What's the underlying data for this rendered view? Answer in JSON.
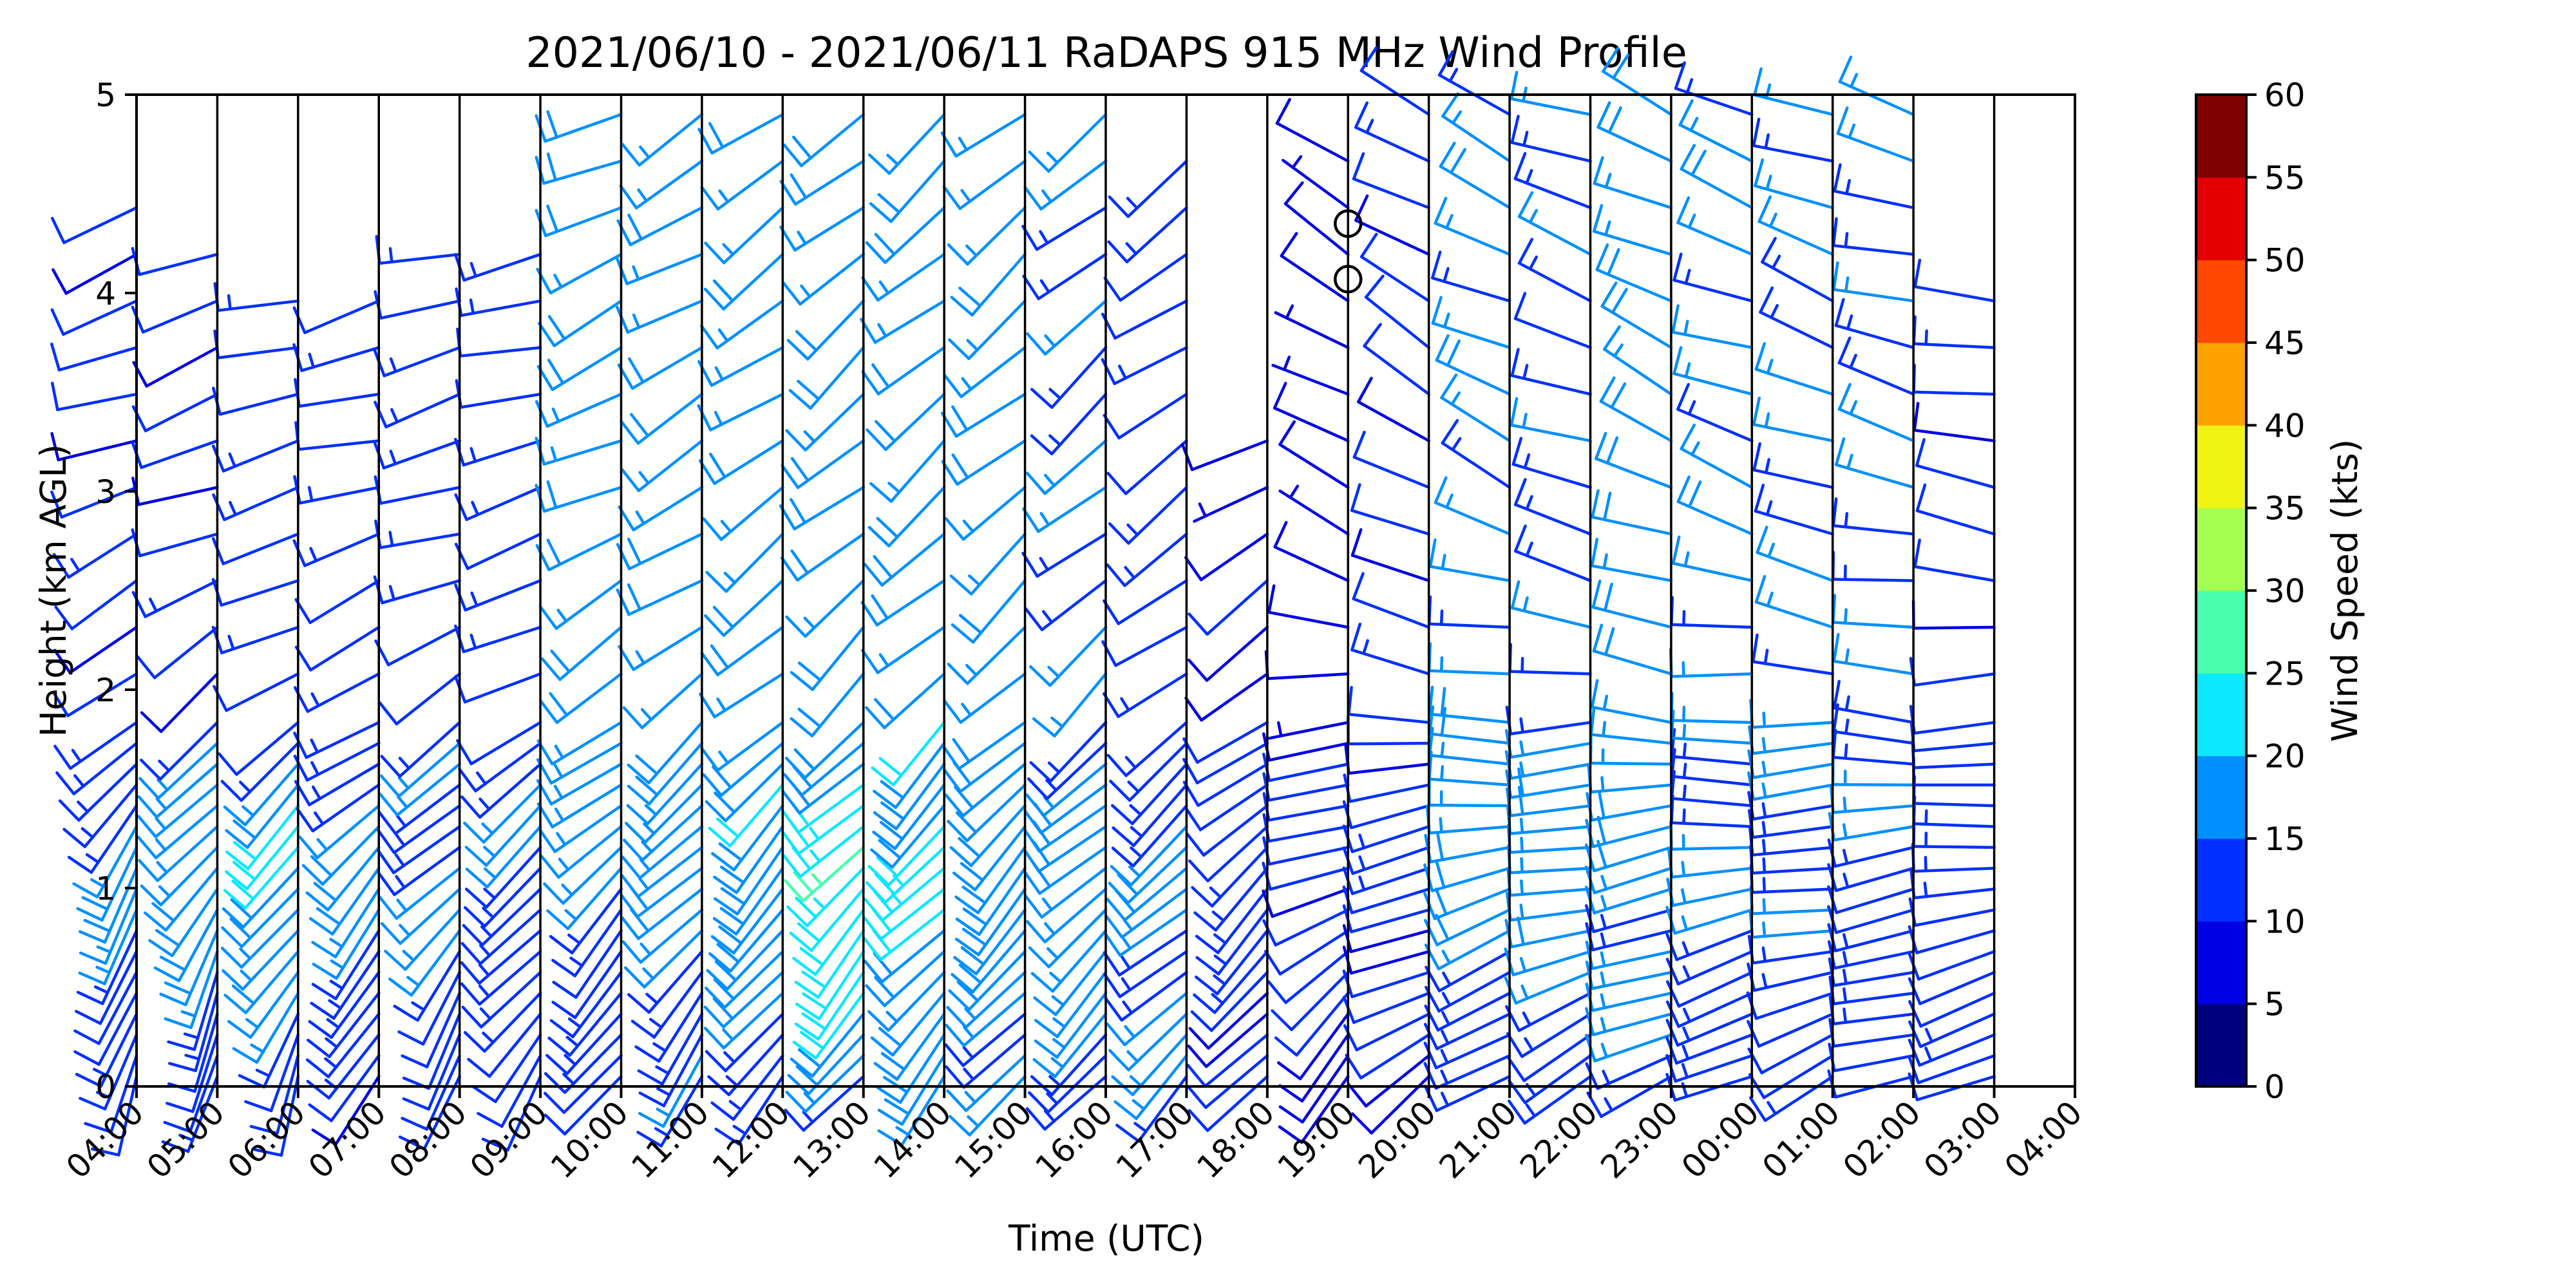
{
  "chart_data": {
    "type": "wind_barb_profile",
    "title": "2021/06/10 - 2021/06/11 RaDAPS 915 MHz Wind Profile",
    "xlabel": "Time (UTC)",
    "ylabel": "Height (km AGL)",
    "x_ticks": [
      "04:00",
      "05:00",
      "06:00",
      "07:00",
      "08:00",
      "09:00",
      "10:00",
      "11:00",
      "12:00",
      "13:00",
      "14:00",
      "15:00",
      "16:00",
      "17:00",
      "18:00",
      "19:00",
      "20:00",
      "21:00",
      "22:00",
      "23:00",
      "00:00",
      "01:00",
      "02:00",
      "03:00",
      "04:00"
    ],
    "y_ticks": [
      "0",
      "1",
      "2",
      "3",
      "4",
      "5"
    ],
    "ylim": [
      0,
      5
    ],
    "colorbar": {
      "label": "Wind Speed (kts)",
      "ticks": [
        "0",
        "5",
        "10",
        "15",
        "20",
        "25",
        "30",
        "35",
        "40",
        "45",
        "50",
        "55",
        "60"
      ],
      "colors": [
        "#00007f",
        "#0000e4",
        "#0030ff",
        "#0090ff",
        "#0de7ff",
        "#49ffad",
        "#a4ff53",
        "#f0f415",
        "#ffa200",
        "#ff4800",
        "#e30000",
        "#7f0000"
      ]
    },
    "calm_markers_km": [
      4.35,
      4.07
    ],
    "calm_marker_time": "19:00",
    "profiles": [
      {
        "time": "04:00",
        "layer_top_km": 4.5,
        "speed_low_kts": 10,
        "speed_jet_kts": 17,
        "speed_upper_kts": 11,
        "dir_low_deg": 190,
        "dir_upper_deg": 250
      },
      {
        "time": "05:00",
        "layer_top_km": 4.4,
        "speed_low_kts": 11,
        "speed_jet_kts": 19,
        "speed_upper_kts": 11,
        "dir_low_deg": 195,
        "dir_upper_deg": 250
      },
      {
        "time": "06:00",
        "layer_top_km": 4.1,
        "speed_low_kts": 11,
        "speed_jet_kts": 21,
        "speed_upper_kts": 12,
        "dir_low_deg": 200,
        "dir_upper_deg": 255
      },
      {
        "time": "07:00",
        "layer_top_km": 4.1,
        "speed_low_kts": 10,
        "speed_jet_kts": 18,
        "speed_upper_kts": 12,
        "dir_low_deg": 205,
        "dir_upper_deg": 255
      },
      {
        "time": "08:00",
        "layer_top_km": 4.4,
        "speed_low_kts": 10,
        "speed_jet_kts": 16,
        "speed_upper_kts": 13,
        "dir_low_deg": 205,
        "dir_upper_deg": 255
      },
      {
        "time": "09:00",
        "layer_top_km": 4.3,
        "speed_low_kts": 11,
        "speed_jet_kts": 15,
        "speed_upper_kts": 13,
        "dir_low_deg": 210,
        "dir_upper_deg": 255
      },
      {
        "time": "10:00",
        "layer_top_km": 5.0,
        "speed_low_kts": 11,
        "speed_jet_kts": 15,
        "speed_upper_kts": 18,
        "dir_low_deg": 215,
        "dir_upper_deg": 245
      },
      {
        "time": "11:00",
        "layer_top_km": 5.0,
        "speed_low_kts": 13,
        "speed_jet_kts": 17,
        "speed_upper_kts": 17,
        "dir_low_deg": 215,
        "dir_upper_deg": 240
      },
      {
        "time": "12:00",
        "layer_top_km": 5.0,
        "speed_low_kts": 14,
        "speed_jet_kts": 20,
        "speed_upper_kts": 17,
        "dir_low_deg": 215,
        "dir_upper_deg": 235
      },
      {
        "time": "13:00",
        "layer_top_km": 5.0,
        "speed_low_kts": 16,
        "speed_jet_kts": 24,
        "speed_upper_kts": 18,
        "dir_low_deg": 220,
        "dir_upper_deg": 230
      },
      {
        "time": "14:00",
        "layer_top_km": 5.0,
        "speed_low_kts": 16,
        "speed_jet_kts": 22,
        "speed_upper_kts": 18,
        "dir_low_deg": 220,
        "dir_upper_deg": 230
      },
      {
        "time": "15:00",
        "layer_top_km": 5.0,
        "speed_low_kts": 15,
        "speed_jet_kts": 20,
        "speed_upper_kts": 17,
        "dir_low_deg": 220,
        "dir_upper_deg": 230
      },
      {
        "time": "16:00",
        "layer_top_km": 5.0,
        "speed_low_kts": 14,
        "speed_jet_kts": 18,
        "speed_upper_kts": 15,
        "dir_low_deg": 225,
        "dir_upper_deg": 230
      },
      {
        "time": "17:00",
        "layer_top_km": 4.7,
        "speed_low_kts": 14,
        "speed_jet_kts": 17,
        "speed_upper_kts": 12,
        "dir_low_deg": 225,
        "dir_upper_deg": 235
      },
      {
        "time": "18:00",
        "layer_top_km": 3.4,
        "speed_low_kts": 10,
        "speed_jet_kts": 14,
        "speed_upper_kts": 9,
        "dir_low_deg": 220,
        "dir_upper_deg": 240
      },
      {
        "time": "19:00",
        "layer_top_km": 4.8,
        "speed_low_kts": 9,
        "speed_jet_kts": 12,
        "speed_upper_kts": 8,
        "dir_low_deg": 215,
        "dir_upper_deg": 300
      },
      {
        "time": "20:00",
        "layer_top_km": 4.9,
        "speed_low_kts": 9,
        "speed_jet_kts": 12,
        "speed_upper_kts": 11,
        "dir_low_deg": 230,
        "dir_upper_deg": 300
      },
      {
        "time": "21:00",
        "layer_top_km": 5.0,
        "speed_low_kts": 12,
        "speed_jet_kts": 18,
        "speed_upper_kts": 16,
        "dir_low_deg": 235,
        "dir_upper_deg": 295
      },
      {
        "time": "22:00",
        "layer_top_km": 5.0,
        "speed_low_kts": 13,
        "speed_jet_kts": 18,
        "speed_upper_kts": 14,
        "dir_low_deg": 240,
        "dir_upper_deg": 290
      },
      {
        "time": "23:00",
        "layer_top_km": 5.0,
        "speed_low_kts": 14,
        "speed_jet_kts": 17,
        "speed_upper_kts": 18,
        "dir_low_deg": 240,
        "dir_upper_deg": 295
      },
      {
        "time": "00:00",
        "layer_top_km": 5.0,
        "speed_low_kts": 13,
        "speed_jet_kts": 15,
        "speed_upper_kts": 16,
        "dir_low_deg": 245,
        "dir_upper_deg": 290
      },
      {
        "time": "01:00",
        "layer_top_km": 5.0,
        "speed_low_kts": 12,
        "speed_jet_kts": 15,
        "speed_upper_kts": 15,
        "dir_low_deg": 245,
        "dir_upper_deg": 290
      },
      {
        "time": "02:00",
        "layer_top_km": 5.0,
        "speed_low_kts": 12,
        "speed_jet_kts": 14,
        "speed_upper_kts": 15,
        "dir_low_deg": 250,
        "dir_upper_deg": 285
      },
      {
        "time": "03:00",
        "layer_top_km": 4.0,
        "speed_low_kts": 11,
        "speed_jet_kts": 13,
        "speed_upper_kts": 11,
        "dir_low_deg": 250,
        "dir_upper_deg": 280
      }
    ]
  }
}
